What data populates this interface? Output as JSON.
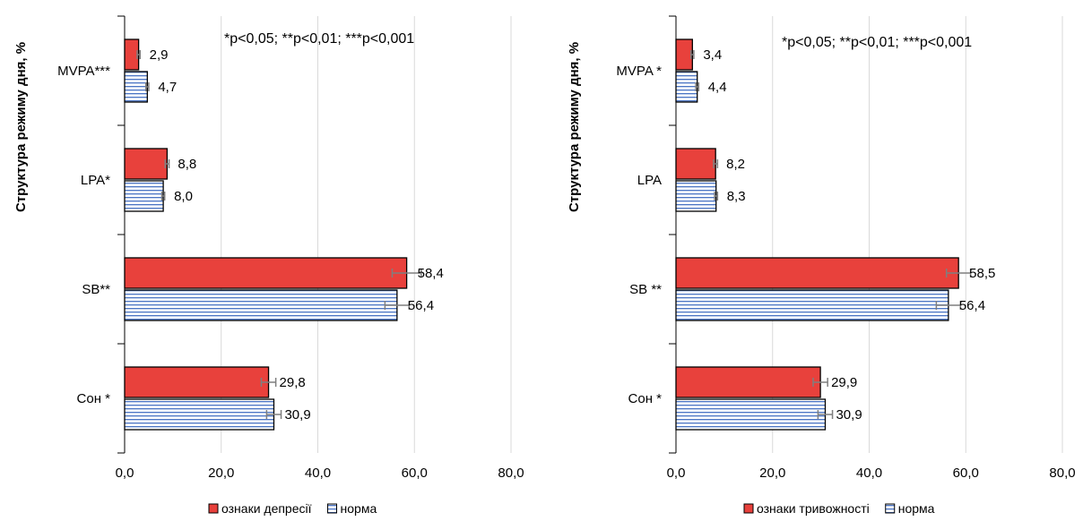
{
  "chart_data": [
    {
      "type": "bar",
      "orientation": "horizontal",
      "ylabel": "Структура режиму дня, %",
      "annotation": "*p<0,05; **p<0,01; ***p<0,001",
      "categories": [
        "MVPA***",
        "LPA*",
        "SB**",
        "Сон *"
      ],
      "xlim": [
        0,
        80
      ],
      "xticks": [
        "0,0",
        "20,0",
        "40,0",
        "60,0",
        "80,0"
      ],
      "series": [
        {
          "name": "ознаки депресії",
          "color": "#e8413c",
          "values": [
            2.9,
            8.8,
            58.4,
            29.8
          ],
          "labels": [
            "2,9",
            "8,8",
            "58,4",
            "29,8"
          ],
          "errors": [
            0.3,
            0.4,
            3.0,
            1.5
          ]
        },
        {
          "name": "норма",
          "color": "#4a74c4",
          "values": [
            4.7,
            8.0,
            56.4,
            30.9
          ],
          "labels": [
            "4,7",
            "8,0",
            "56,4",
            "30,9"
          ],
          "errors": [
            0.3,
            0.3,
            2.5,
            1.5
          ]
        }
      ],
      "legend_position": "bottom",
      "grid": true
    },
    {
      "type": "bar",
      "orientation": "horizontal",
      "ylabel": "Структура режиму дня, %",
      "annotation": "*p<0,05; **p<0,01; ***p<0,001",
      "categories": [
        "MVPA *",
        "LPA",
        "SB **",
        "Сон *"
      ],
      "xlim": [
        0,
        80
      ],
      "xticks": [
        "0,0",
        "20,0",
        "40,0",
        "60,0",
        "80,0"
      ],
      "series": [
        {
          "name": "ознаки тривожності",
          "color": "#e8413c",
          "values": [
            3.4,
            8.2,
            58.5,
            29.9
          ],
          "labels": [
            "3,4",
            "8,2",
            "58,5",
            "29,9"
          ],
          "errors": [
            0.3,
            0.4,
            2.5,
            1.5
          ]
        },
        {
          "name": "норма",
          "color": "#4a74c4",
          "values": [
            4.4,
            8.3,
            56.4,
            30.9
          ],
          "labels": [
            "4,4",
            "8,3",
            "56,4",
            "30,9"
          ],
          "errors": [
            0.3,
            0.3,
            2.5,
            1.5
          ]
        }
      ],
      "legend_position": "bottom",
      "grid": true
    }
  ]
}
